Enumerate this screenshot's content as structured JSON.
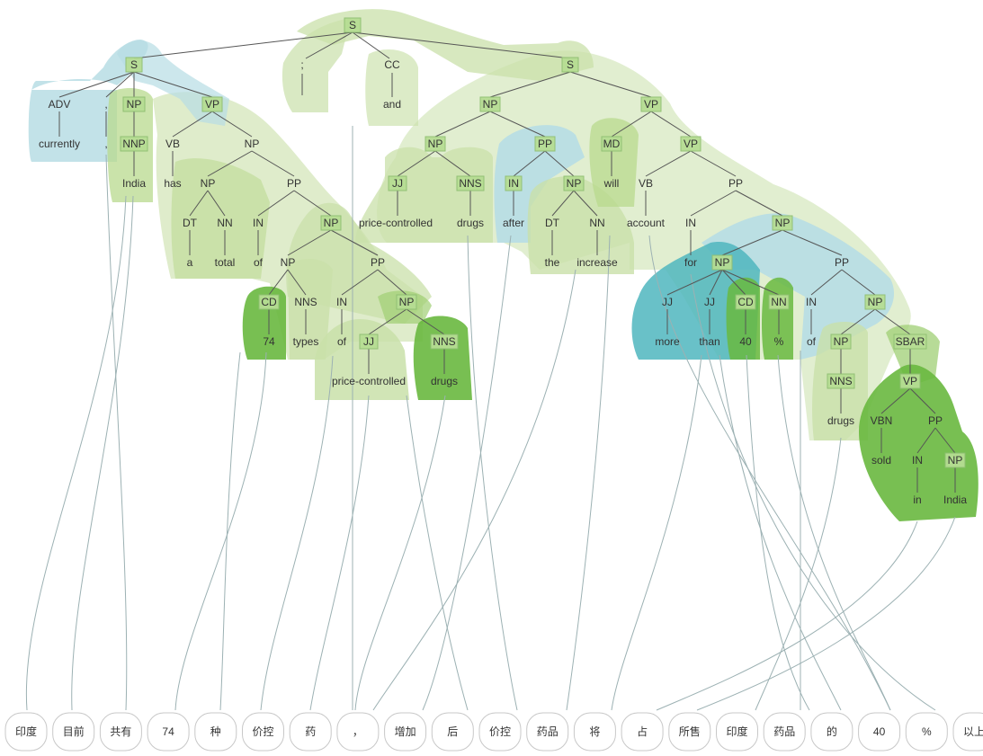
{
  "tree": {
    "nodes": [
      {
        "id": "s_root",
        "label": "S",
        "boxed": true
      },
      {
        "id": "s_left",
        "label": "S",
        "boxed": true
      },
      {
        "id": "semi",
        "label": ";"
      },
      {
        "id": "cc",
        "label": "CC"
      },
      {
        "id": "and",
        "label": "and"
      },
      {
        "id": "s_right",
        "label": "S",
        "boxed": true
      },
      {
        "id": "adv",
        "label": "ADV"
      },
      {
        "id": "currently",
        "label": "currently"
      },
      {
        "id": "comma_tag",
        "label": ","
      },
      {
        "id": "comma_word",
        "label": ","
      },
      {
        "id": "np_india",
        "label": "NP",
        "boxed": true
      },
      {
        "id": "nnp",
        "label": "NNP",
        "boxed": true
      },
      {
        "id": "india1",
        "label": "India"
      },
      {
        "id": "vp1",
        "label": "VP",
        "boxed": true
      },
      {
        "id": "vb_has",
        "label": "VB"
      },
      {
        "id": "has",
        "label": "has"
      },
      {
        "id": "np_main",
        "label": "NP"
      },
      {
        "id": "np_atotal",
        "label": "NP"
      },
      {
        "id": "dt_a",
        "label": "DT"
      },
      {
        "id": "a",
        "label": "a"
      },
      {
        "id": "nn_total",
        "label": "NN"
      },
      {
        "id": "total",
        "label": "total"
      },
      {
        "id": "pp_of",
        "label": "PP"
      },
      {
        "id": "in_of1",
        "label": "IN"
      },
      {
        "id": "of1",
        "label": "of"
      },
      {
        "id": "np_74",
        "label": "NP",
        "boxed": true
      },
      {
        "id": "np_74types",
        "label": "NP"
      },
      {
        "id": "cd_74",
        "label": "CD",
        "boxed": true
      },
      {
        "id": "w74",
        "label": "74"
      },
      {
        "id": "nns_types",
        "label": "NNS"
      },
      {
        "id": "types",
        "label": "types"
      },
      {
        "id": "pp_of2",
        "label": "PP"
      },
      {
        "id": "in_of2",
        "label": "IN"
      },
      {
        "id": "of2",
        "label": "of"
      },
      {
        "id": "np_pcd",
        "label": "NP",
        "boxed": true
      },
      {
        "id": "jj_pc1",
        "label": "JJ",
        "boxed": true
      },
      {
        "id": "pc1",
        "label": "price-controlled"
      },
      {
        "id": "nns_drugs1",
        "label": "NNS",
        "boxed": true
      },
      {
        "id": "drugs1",
        "label": "drugs"
      },
      {
        "id": "np_r",
        "label": "NP",
        "boxed": true
      },
      {
        "id": "np_pcd2",
        "label": "NP",
        "boxed": true
      },
      {
        "id": "jj_pc2",
        "label": "JJ",
        "boxed": true
      },
      {
        "id": "pc2",
        "label": "price-controlled"
      },
      {
        "id": "nns_drugs2",
        "label": "NNS",
        "boxed": true
      },
      {
        "id": "drugs2",
        "label": "drugs"
      },
      {
        "id": "pp_after",
        "label": "PP",
        "boxed": true
      },
      {
        "id": "in_after",
        "label": "IN",
        "boxed": true
      },
      {
        "id": "after",
        "label": "after"
      },
      {
        "id": "np_inc",
        "label": "NP",
        "boxed": true
      },
      {
        "id": "dt_the",
        "label": "DT"
      },
      {
        "id": "the",
        "label": "the"
      },
      {
        "id": "nn_inc",
        "label": "NN"
      },
      {
        "id": "increase",
        "label": "increase"
      },
      {
        "id": "vp_r",
        "label": "VP",
        "boxed": true
      },
      {
        "id": "md",
        "label": "MD",
        "boxed": true
      },
      {
        "id": "will",
        "label": "will"
      },
      {
        "id": "vp_acc",
        "label": "VP",
        "boxed": true
      },
      {
        "id": "vb_acc",
        "label": "VB"
      },
      {
        "id": "account",
        "label": "account"
      },
      {
        "id": "pp_for",
        "label": "PP"
      },
      {
        "id": "in_for",
        "label": "IN"
      },
      {
        "id": "for",
        "label": "for"
      },
      {
        "id": "np_big",
        "label": "NP",
        "boxed": true
      },
      {
        "id": "np_more",
        "label": "NP",
        "boxed": true
      },
      {
        "id": "jj_more",
        "label": "JJ"
      },
      {
        "id": "more",
        "label": "more"
      },
      {
        "id": "jj_than",
        "label": "JJ"
      },
      {
        "id": "than",
        "label": "than"
      },
      {
        "id": "cd_40",
        "label": "CD",
        "boxed": true
      },
      {
        "id": "w40",
        "label": "40"
      },
      {
        "id": "nn_pct",
        "label": "NN",
        "boxed": true
      },
      {
        "id": "pct",
        "label": "%"
      },
      {
        "id": "pp_of3",
        "label": "PP"
      },
      {
        "id": "in_of3",
        "label": "IN"
      },
      {
        "id": "of3",
        "label": "of"
      },
      {
        "id": "np_ds",
        "label": "NP",
        "boxed": true
      },
      {
        "id": "np_drugs3",
        "label": "NP",
        "boxed": true
      },
      {
        "id": "nns_drugs3",
        "label": "NNS",
        "boxed": true
      },
      {
        "id": "drugs3",
        "label": "drugs"
      },
      {
        "id": "sbar",
        "label": "SBAR",
        "boxed": true
      },
      {
        "id": "vp_sold",
        "label": "VP",
        "boxed": true
      },
      {
        "id": "vbn",
        "label": "VBN"
      },
      {
        "id": "sold",
        "label": "sold"
      },
      {
        "id": "pp_in",
        "label": "PP"
      },
      {
        "id": "in_in",
        "label": "IN"
      },
      {
        "id": "in_word",
        "label": "in"
      },
      {
        "id": "np_india2",
        "label": "NP",
        "boxed": true
      },
      {
        "id": "india2",
        "label": "India"
      }
    ]
  },
  "tokens": [
    "印度",
    "目前",
    "共有",
    "74",
    "种",
    "价控",
    "药",
    "，",
    "增加",
    "后",
    "价控",
    "药品",
    "将",
    "占",
    "所售",
    "印度",
    "药品",
    "的",
    "40",
    "%",
    "以上"
  ],
  "colors": {
    "light_green": "#c9e0a9",
    "mid_green": "#9fcf74",
    "dark_green": "#69b83f",
    "light_teal": "#b7dde4",
    "teal": "#4fb6be",
    "line": "#555555",
    "align": "#9cb1b3",
    "tag_box": "#8fbf72",
    "token_border": "#c8c8c8"
  }
}
